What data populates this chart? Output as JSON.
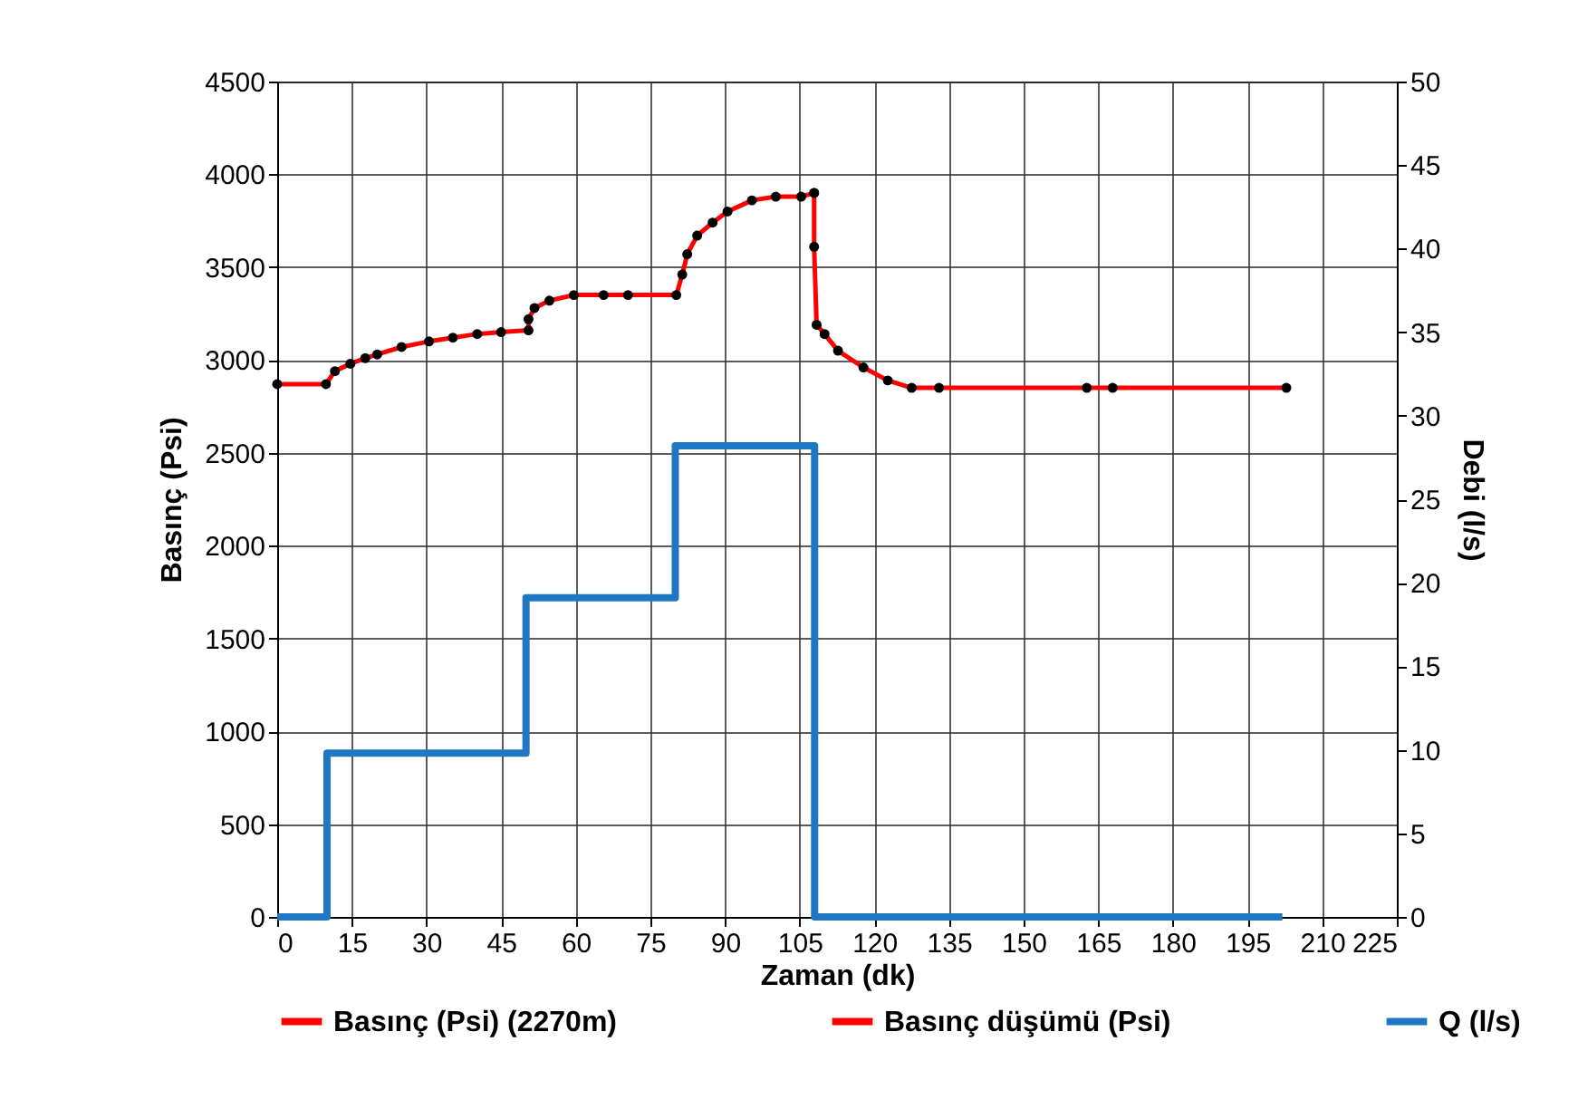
{
  "chart_data": {
    "type": "line",
    "xlabel": "Zaman (dk)",
    "ylabel": "Basınç (Psi)",
    "y2label": "Debi (l/s)",
    "xlim": [
      0,
      225
    ],
    "xticks": [
      0,
      15,
      30,
      45,
      60,
      75,
      90,
      105,
      120,
      135,
      150,
      165,
      180,
      195,
      210,
      225
    ],
    "ylim": [
      0,
      4500
    ],
    "yticks": [
      0,
      500,
      1000,
      1500,
      2000,
      2500,
      3000,
      3500,
      4000,
      4500
    ],
    "y2lim": [
      0,
      50
    ],
    "y2ticks": [
      0,
      5,
      10,
      15,
      20,
      25,
      30,
      35,
      40,
      45,
      50
    ],
    "grid": true,
    "legend": "bottom",
    "series": [
      {
        "name": "Basınç (Psi) (2270m)",
        "type": "line",
        "marker": "circle",
        "color": "#ff0000",
        "x": [
          0,
          9.8,
          11.6,
          14.7,
          17.7,
          20.1,
          25,
          30.5,
          35.3,
          40.2,
          45,
          50.5,
          50.5,
          51.7,
          54.7,
          59.6,
          65.6,
          70.5,
          80.2,
          81.4,
          82.4,
          84.4,
          87.5,
          90.5,
          95.4,
          100.2,
          105.3,
          107.9
        ],
        "values": [
          2870,
          2870,
          2940,
          2980,
          3010,
          3030,
          3070,
          3100,
          3120,
          3140,
          3150,
          3160,
          3220,
          3280,
          3320,
          3350,
          3350,
          3350,
          3350,
          3460,
          3570,
          3670,
          3740,
          3800,
          3860,
          3880,
          3880,
          3900
        ]
      },
      {
        "name": "Basınç düşümü (Psi)",
        "type": "line",
        "marker": "circle",
        "color": "#ff0000",
        "x": [
          107.9,
          107.9,
          108.4,
          110,
          112.7,
          117.8,
          122.7,
          127.5,
          133,
          162.7,
          167.9,
          202.8
        ],
        "values": [
          3900,
          3610,
          3190,
          3140,
          3050,
          2960,
          2890,
          2850,
          2850,
          2850,
          2850,
          2850
        ]
      },
      {
        "name": "Q (l/s)",
        "type": "step",
        "axis": "y2",
        "marker": "none",
        "color": "#1f77c4",
        "x": [
          0,
          10,
          50,
          80,
          108,
          202
        ],
        "values": [
          0,
          9.8,
          19.1,
          28.2,
          0,
          0
        ]
      }
    ]
  }
}
